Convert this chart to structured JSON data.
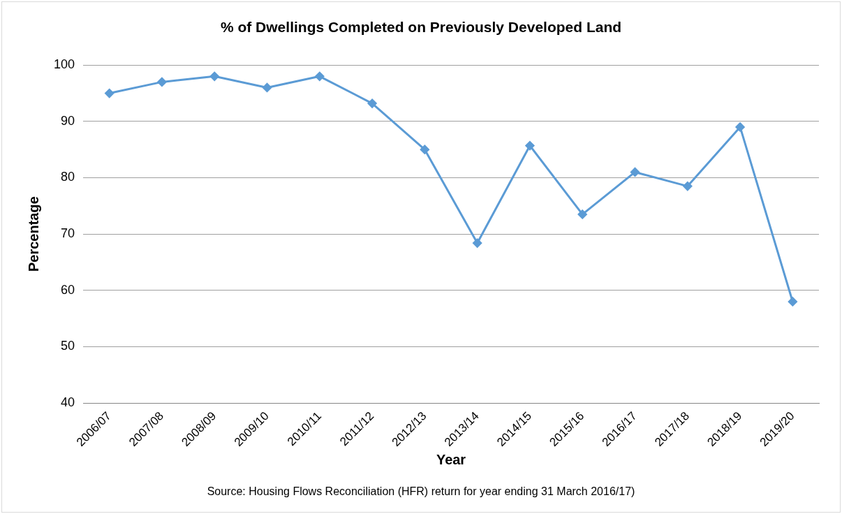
{
  "chart_data": {
    "type": "line",
    "title": "% of Dwellings Completed on Previously Developed Land",
    "xlabel": "Year",
    "ylabel": "Percentage",
    "categories": [
      "2006/07",
      "2007/08",
      "2008/09",
      "2009/10",
      "2010/11",
      "2011/12",
      "2012/13",
      "2013/14",
      "2014/15",
      "2015/16",
      "2016/17",
      "2017/18",
      "2018/19",
      "2019/20"
    ],
    "series": [
      {
        "color": "#5b9bd5",
        "values": [
          95,
          97,
          98,
          96,
          98,
          93.2,
          85,
          68.4,
          85.7,
          73.5,
          81,
          78.5,
          89,
          58
        ]
      }
    ],
    "ylim": [
      40,
      100
    ],
    "yticks": [
      40,
      50,
      60,
      70,
      80,
      90,
      100
    ],
    "grid": "y",
    "legend": false,
    "marker": "diamond",
    "line_style": "solid",
    "annotations": [
      "Source: Housing Flows Reconciliation (HFR) return for year ending 31 March 2016/17)"
    ]
  }
}
